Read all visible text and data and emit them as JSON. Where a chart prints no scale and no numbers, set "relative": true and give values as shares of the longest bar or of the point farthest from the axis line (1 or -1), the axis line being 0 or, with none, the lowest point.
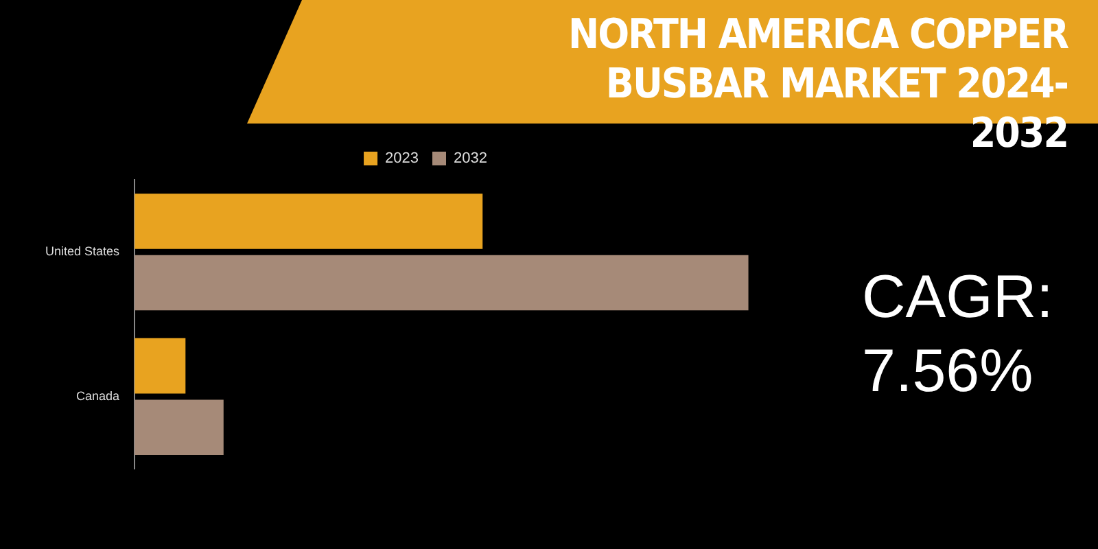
{
  "chart_data": {
    "type": "bar",
    "title": "NORTH AMERICA COPPER BUSBAR MARKET 2024-2032",
    "orientation": "horizontal",
    "relative": true,
    "categories": [
      "United States",
      "Canada"
    ],
    "series": [
      {
        "name": "2023",
        "color": "#e8a320",
        "values": [
          0.567,
          0.083
        ]
      },
      {
        "name": "2032",
        "color": "#a68a78",
        "values": [
          1,
          0.145
        ]
      }
    ],
    "legend": "top",
    "grid": false,
    "annotations": [
      "CAGR: 7.56%"
    ]
  }
}
